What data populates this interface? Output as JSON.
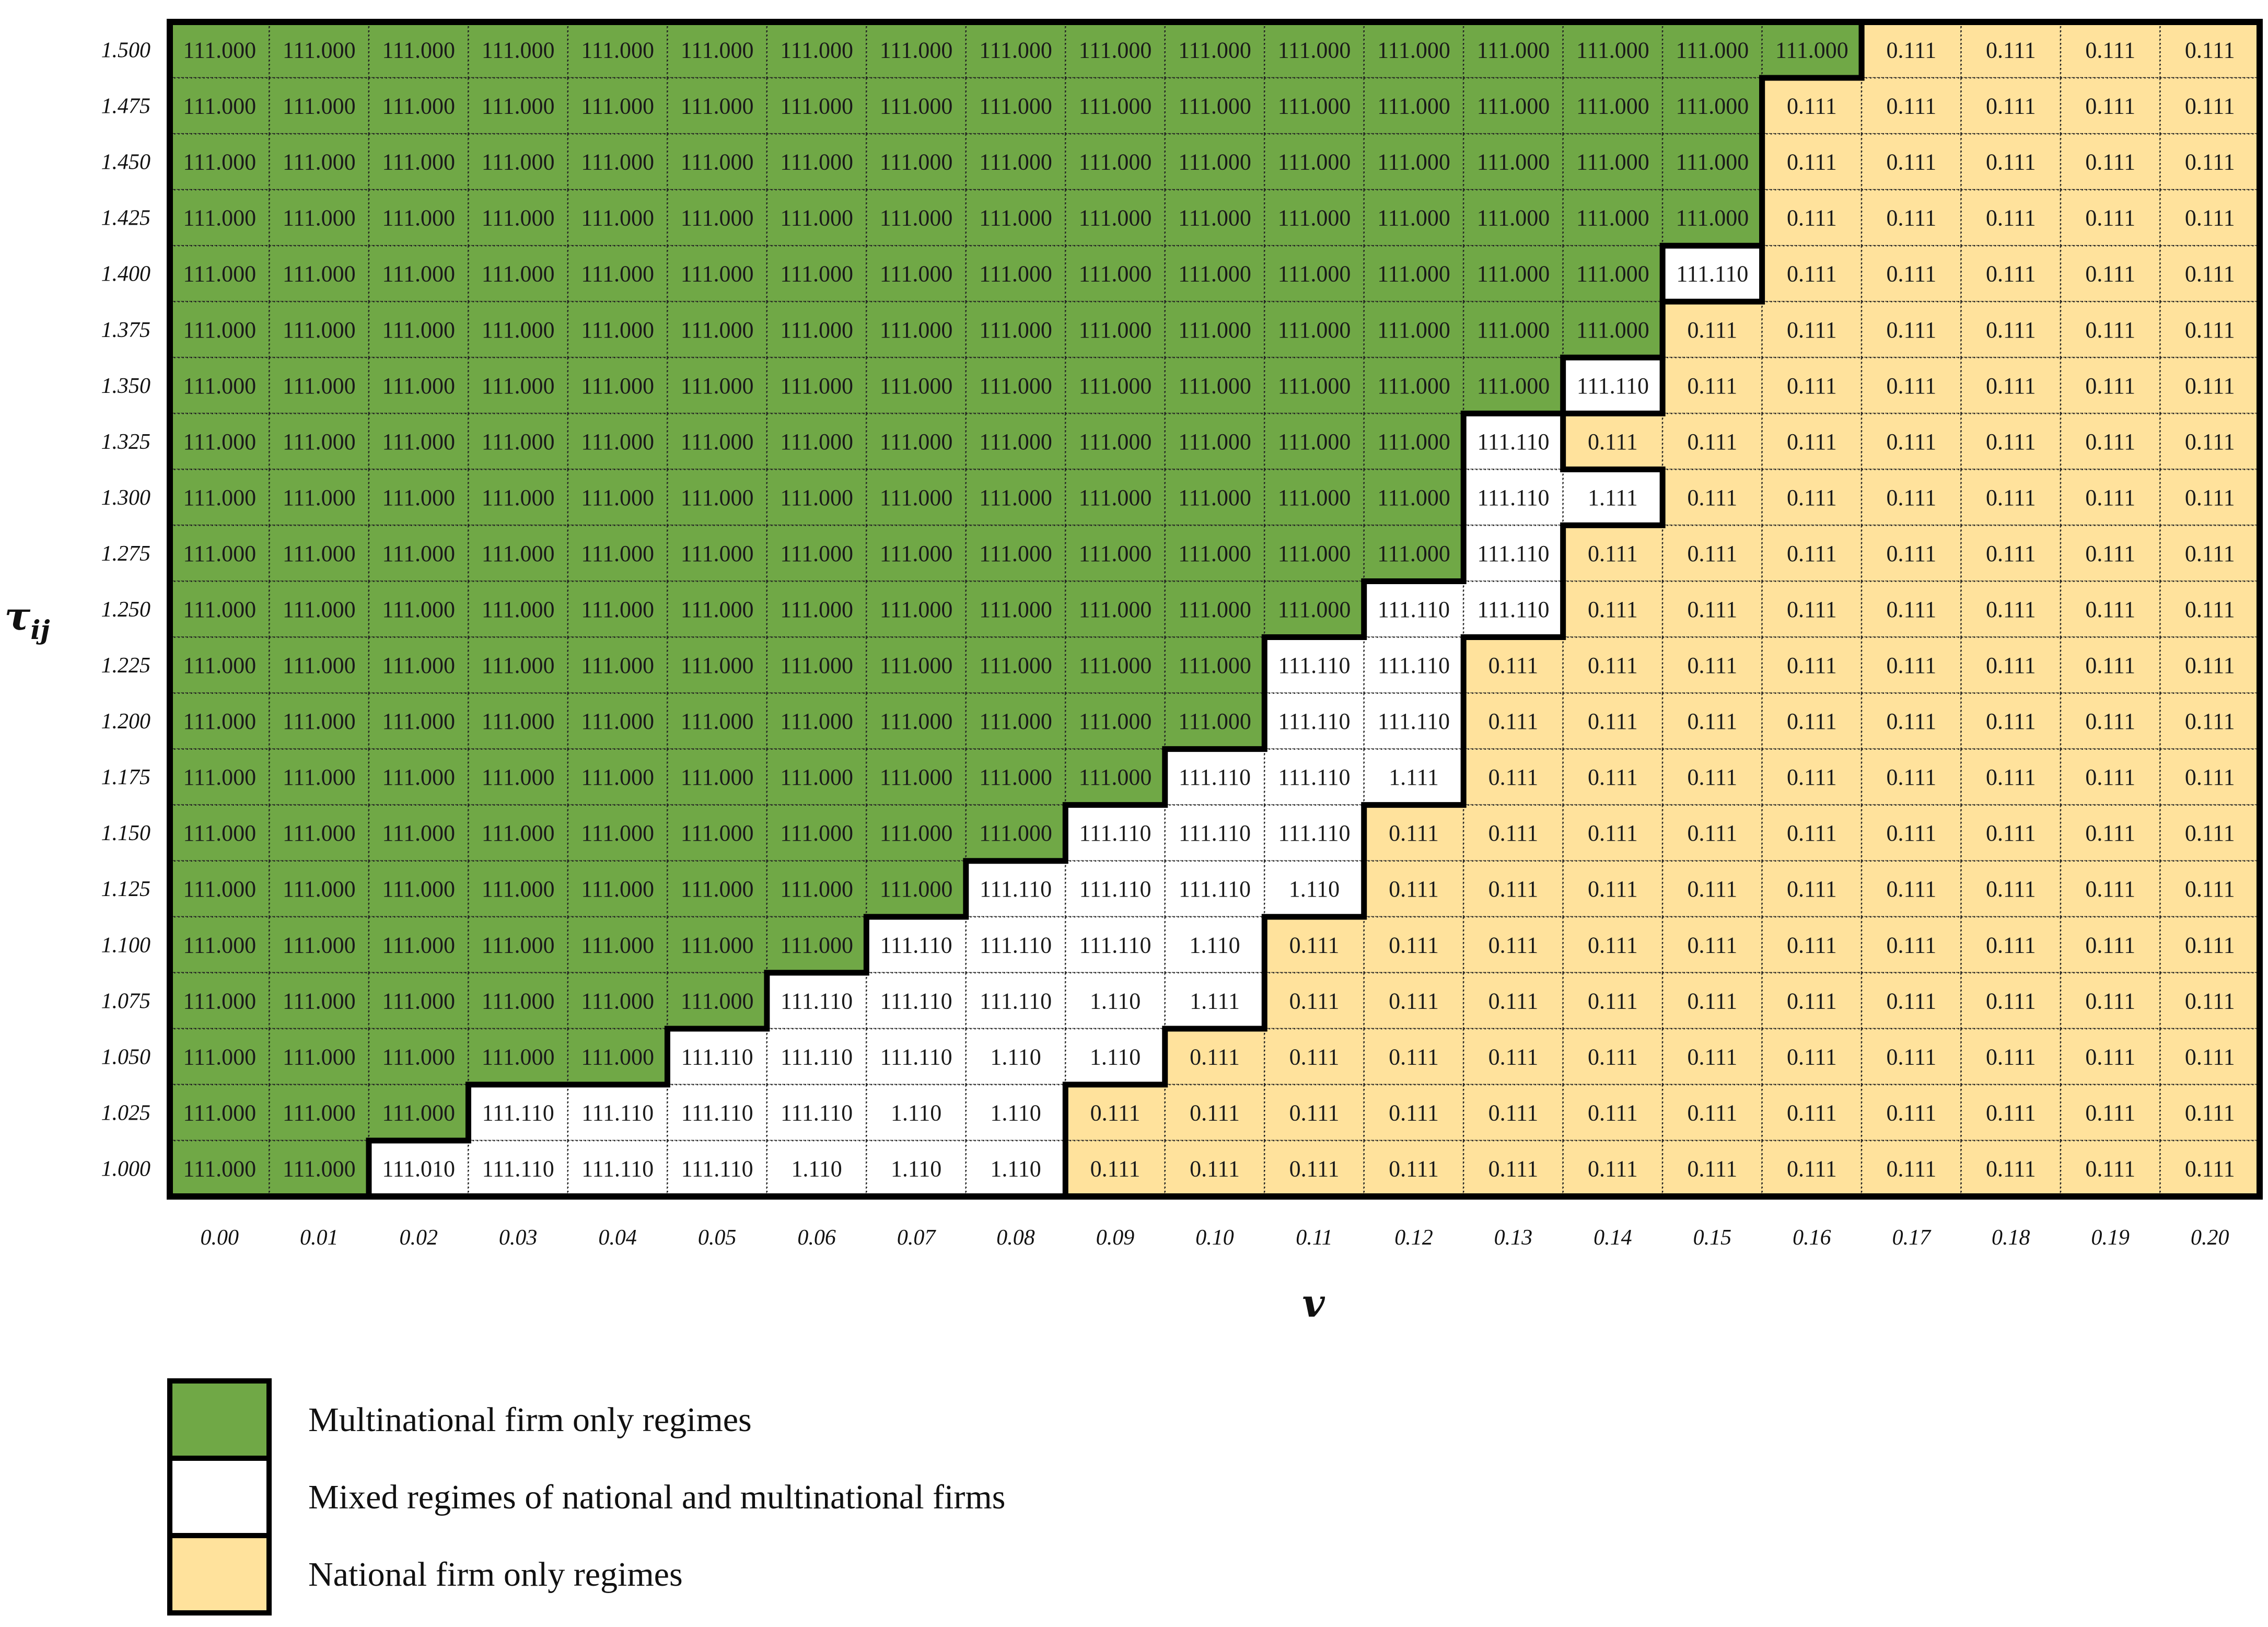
{
  "chart_data": {
    "type": "heatmap",
    "title": "",
    "xlabel": "v",
    "ylabel_base": "τ",
    "ylabel_sub": "ij",
    "x_labels": [
      "0.00",
      "0.01",
      "0.02",
      "0.03",
      "0.04",
      "0.05",
      "0.06",
      "0.07",
      "0.08",
      "0.09",
      "0.10",
      "0.11",
      "0.12",
      "0.13",
      "0.14",
      "0.15",
      "0.16",
      "0.17",
      "0.18",
      "0.19",
      "0.20"
    ],
    "y_labels": [
      "1.500",
      "1.475",
      "1.450",
      "1.425",
      "1.400",
      "1.375",
      "1.350",
      "1.325",
      "1.300",
      "1.275",
      "1.250",
      "1.225",
      "1.200",
      "1.175",
      "1.150",
      "1.125",
      "1.100",
      "1.075",
      "1.050",
      "1.025",
      "1.000"
    ],
    "mixed_values": {
      "1.400": [
        "111.110"
      ],
      "1.350": [
        "111.110"
      ],
      "1.325": [
        "111.110"
      ],
      "1.300": [
        "111.110",
        "1.111"
      ],
      "1.275": [
        "111.110"
      ],
      "1.250": [
        "111.110",
        "111.110"
      ],
      "1.225": [
        "111.110",
        "111.110"
      ],
      "1.200": [
        "111.110",
        "111.110"
      ],
      "1.175": [
        "111.110",
        "111.110",
        "1.111"
      ],
      "1.150": [
        "111.110",
        "111.110",
        "111.110"
      ],
      "1.125": [
        "111.110",
        "111.110",
        "111.110",
        "1.110"
      ],
      "1.100": [
        "111.110",
        "111.110",
        "111.110",
        "1.110"
      ],
      "1.075": [
        "111.110",
        "111.110",
        "111.110",
        "1.110",
        "1.111"
      ],
      "1.050": [
        "111.110",
        "111.110",
        "111.110",
        "1.110",
        "1.110"
      ],
      "1.025": [
        "111.110",
        "111.110",
        "111.110",
        "111.110",
        "1.110",
        "1.110"
      ],
      "1.000": [
        "111.010",
        "111.110",
        "111.110",
        "111.110",
        "1.110",
        "1.110",
        "1.110"
      ]
    },
    "green_counts": [
      17,
      16,
      16,
      16,
      15,
      15,
      14,
      13,
      13,
      13,
      12,
      11,
      11,
      10,
      9,
      8,
      7,
      6,
      5,
      3,
      2
    ],
    "mixed_counts": [
      0,
      0,
      0,
      0,
      1,
      0,
      1,
      1,
      2,
      1,
      2,
      2,
      2,
      3,
      3,
      4,
      4,
      5,
      5,
      6,
      7
    ],
    "green_value": "111.000",
    "yellow_value": "0.111",
    "colors": {
      "green": "#70a846",
      "white": "#ffffff",
      "yellow": "#ffe29c",
      "border": "#000000"
    },
    "legend": [
      {
        "label": "Multinational firm only regimes",
        "color": "#70a846"
      },
      {
        "label": "Mixed regimes of national and multinational firms",
        "color": "#ffffff"
      },
      {
        "label": "National firm only regimes",
        "color": "#ffe29c"
      }
    ]
  }
}
